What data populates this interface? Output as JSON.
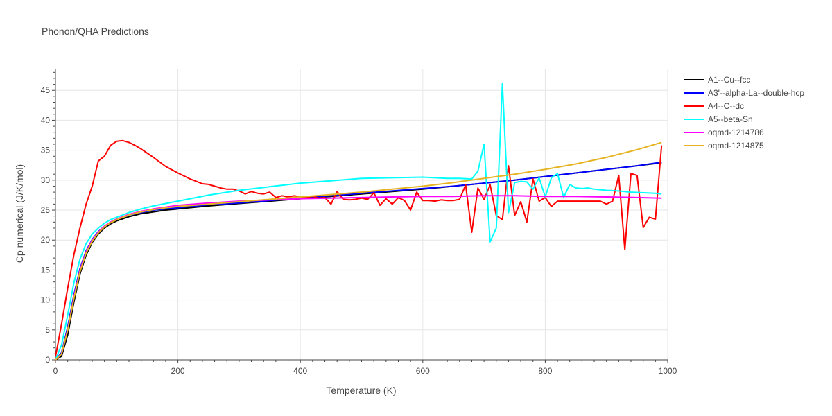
{
  "chart_data": {
    "type": "line",
    "title": "Phonon/QHA Predictions",
    "xlabel": "Temperature (K)",
    "ylabel": "Cp numerical (J/K/mol)",
    "xlim": [
      0,
      1000
    ],
    "ylim": [
      0,
      48.5
    ],
    "xticks": [
      0,
      200,
      400,
      600,
      800,
      1000
    ],
    "yticks": [
      0,
      5,
      10,
      15,
      20,
      25,
      30,
      35,
      40,
      45
    ],
    "grid": true,
    "legend_position": "top-right",
    "series": [
      {
        "name": "A1--Cu--fcc",
        "color": "#000000",
        "x": [
          0,
          10,
          20,
          30,
          40,
          50,
          60,
          70,
          80,
          90,
          100,
          120,
          140,
          160,
          180,
          200,
          250,
          300,
          350,
          400,
          450,
          500,
          550,
          600,
          650,
          700,
          750,
          800,
          850,
          900,
          950,
          990
        ],
        "y": [
          0,
          0.6,
          4.2,
          9.6,
          14.3,
          17.5,
          19.6,
          21.0,
          22.0,
          22.7,
          23.2,
          23.9,
          24.4,
          24.7,
          25.0,
          25.2,
          25.7,
          26.1,
          26.5,
          26.9,
          27.3,
          27.7,
          28.1,
          28.5,
          29.0,
          29.5,
          30.0,
          30.6,
          31.2,
          31.8,
          32.4,
          32.9
        ]
      },
      {
        "name": "A3'--alpha-La--double-hcp",
        "color": "#0000ff",
        "x": [
          0,
          10,
          20,
          30,
          40,
          50,
          60,
          70,
          80,
          90,
          100,
          120,
          140,
          160,
          180,
          200,
          250,
          300,
          350,
          400,
          450,
          500,
          550,
          600,
          650,
          700,
          750,
          800,
          850,
          900,
          950,
          990
        ],
        "y": [
          0,
          1.2,
          5.5,
          10.8,
          15.2,
          18.2,
          20.1,
          21.4,
          22.3,
          23.0,
          23.5,
          24.2,
          24.6,
          25.0,
          25.2,
          25.4,
          25.9,
          26.2,
          26.6,
          27.0,
          27.4,
          27.8,
          28.2,
          28.6,
          29.0,
          29.5,
          30.0,
          30.6,
          31.2,
          31.8,
          32.4,
          33.0
        ]
      },
      {
        "name": "A4--C--dc",
        "color": "#ff0000",
        "x": [
          0,
          10,
          20,
          30,
          40,
          50,
          60,
          70,
          80,
          90,
          100,
          110,
          120,
          130,
          140,
          160,
          180,
          200,
          220,
          240,
          250,
          260,
          270,
          280,
          290,
          300,
          310,
          320,
          330,
          340,
          350,
          360,
          370,
          380,
          390,
          400,
          410,
          420,
          430,
          440,
          450,
          460,
          470,
          480,
          490,
          500,
          510,
          520,
          530,
          540,
          550,
          560,
          570,
          580,
          590,
          600,
          610,
          620,
          630,
          640,
          650,
          660,
          670,
          680,
          690,
          700,
          710,
          720,
          730,
          740,
          750,
          760,
          770,
          780,
          790,
          800,
          810,
          820,
          830,
          840,
          850,
          860,
          870,
          880,
          890,
          900,
          910,
          920,
          930,
          940,
          950,
          960,
          970,
          980,
          990
        ],
        "y": [
          0.5,
          6.0,
          12.0,
          17.5,
          22.0,
          26.0,
          29.0,
          33.2,
          34.0,
          35.8,
          36.5,
          36.6,
          36.3,
          35.8,
          35.2,
          33.8,
          32.3,
          31.2,
          30.2,
          29.4,
          29.3,
          29.0,
          28.7,
          28.5,
          28.5,
          28.2,
          27.7,
          28.1,
          27.8,
          27.7,
          28.0,
          27.1,
          27.4,
          27.2,
          27.4,
          27.2,
          27.1,
          27.3,
          27.0,
          27.1,
          26.0,
          28.1,
          26.8,
          26.7,
          26.8,
          27.0,
          26.8,
          27.9,
          25.8,
          26.9,
          26.0,
          27.1,
          26.6,
          25.0,
          28.0,
          26.6,
          26.6,
          26.5,
          26.7,
          26.6,
          26.6,
          26.8,
          29.2,
          21.3,
          28.7,
          26.8,
          29.2,
          24.1,
          23.4,
          32.4,
          24.1,
          26.4,
          23.0,
          30.2,
          26.5,
          27.1,
          25.6,
          26.5,
          26.5,
          26.5,
          26.5,
          26.5,
          26.5,
          26.5,
          26.5,
          26.0,
          26.5,
          30.8,
          18.4,
          31.1,
          30.8,
          22.1,
          23.8,
          23.5,
          35.8
        ]
      },
      {
        "name": "A5--beta-Sn",
        "color": "#00ffff",
        "x": [
          0,
          10,
          20,
          30,
          40,
          50,
          60,
          70,
          80,
          90,
          100,
          120,
          140,
          160,
          180,
          200,
          250,
          300,
          350,
          400,
          450,
          500,
          550,
          600,
          620,
          640,
          660,
          680,
          690,
          700,
          710,
          720,
          730,
          740,
          750,
          760,
          770,
          780,
          790,
          800,
          810,
          820,
          830,
          840,
          850,
          860,
          870,
          880,
          900,
          920,
          940,
          960,
          980,
          990
        ],
        "y": [
          0,
          2.5,
          7.5,
          12.8,
          16.8,
          19.4,
          21.0,
          22.0,
          22.8,
          23.4,
          23.8,
          24.6,
          25.2,
          25.7,
          26.1,
          26.5,
          27.5,
          28.3,
          28.9,
          29.5,
          29.9,
          30.3,
          30.4,
          30.5,
          30.4,
          30.3,
          30.3,
          30.2,
          31.5,
          36.0,
          19.7,
          22.0,
          46.1,
          24.6,
          29.6,
          29.8,
          29.7,
          28.5,
          30.4,
          27.2,
          30.4,
          31.1,
          27.1,
          29.3,
          28.7,
          28.6,
          28.7,
          28.5,
          28.3,
          28.2,
          28.0,
          27.9,
          27.8,
          27.7
        ]
      },
      {
        "name": "oqmd-1214786",
        "color": "#ff00ff",
        "x": [
          0,
          10,
          20,
          30,
          40,
          50,
          60,
          70,
          80,
          90,
          100,
          120,
          140,
          160,
          180,
          200,
          250,
          300,
          350,
          400,
          450,
          500,
          550,
          600,
          650,
          700,
          750,
          800,
          850,
          900,
          950,
          990
        ],
        "y": [
          0,
          1.0,
          5.0,
          10.4,
          14.9,
          18.0,
          20.0,
          21.3,
          22.3,
          23.0,
          23.5,
          24.3,
          24.8,
          25.2,
          25.5,
          25.8,
          26.2,
          26.5,
          26.7,
          26.9,
          27.0,
          27.1,
          27.2,
          27.3,
          27.3,
          27.4,
          27.4,
          27.3,
          27.3,
          27.2,
          27.1,
          27.0
        ]
      },
      {
        "name": "oqmd-1214875",
        "color": "#e6b422",
        "x": [
          0,
          10,
          20,
          30,
          40,
          50,
          60,
          70,
          80,
          90,
          100,
          120,
          140,
          160,
          180,
          200,
          250,
          300,
          350,
          400,
          450,
          500,
          550,
          600,
          650,
          700,
          750,
          800,
          850,
          900,
          950,
          990
        ],
        "y": [
          0,
          1.0,
          5.0,
          10.2,
          14.7,
          17.8,
          19.8,
          21.2,
          22.2,
          22.9,
          23.4,
          24.2,
          24.7,
          25.1,
          25.4,
          25.6,
          26.0,
          26.4,
          26.8,
          27.2,
          27.6,
          28.0,
          28.5,
          29.0,
          29.6,
          30.3,
          31.0,
          31.8,
          32.7,
          33.8,
          35.1,
          36.3
        ]
      }
    ]
  }
}
